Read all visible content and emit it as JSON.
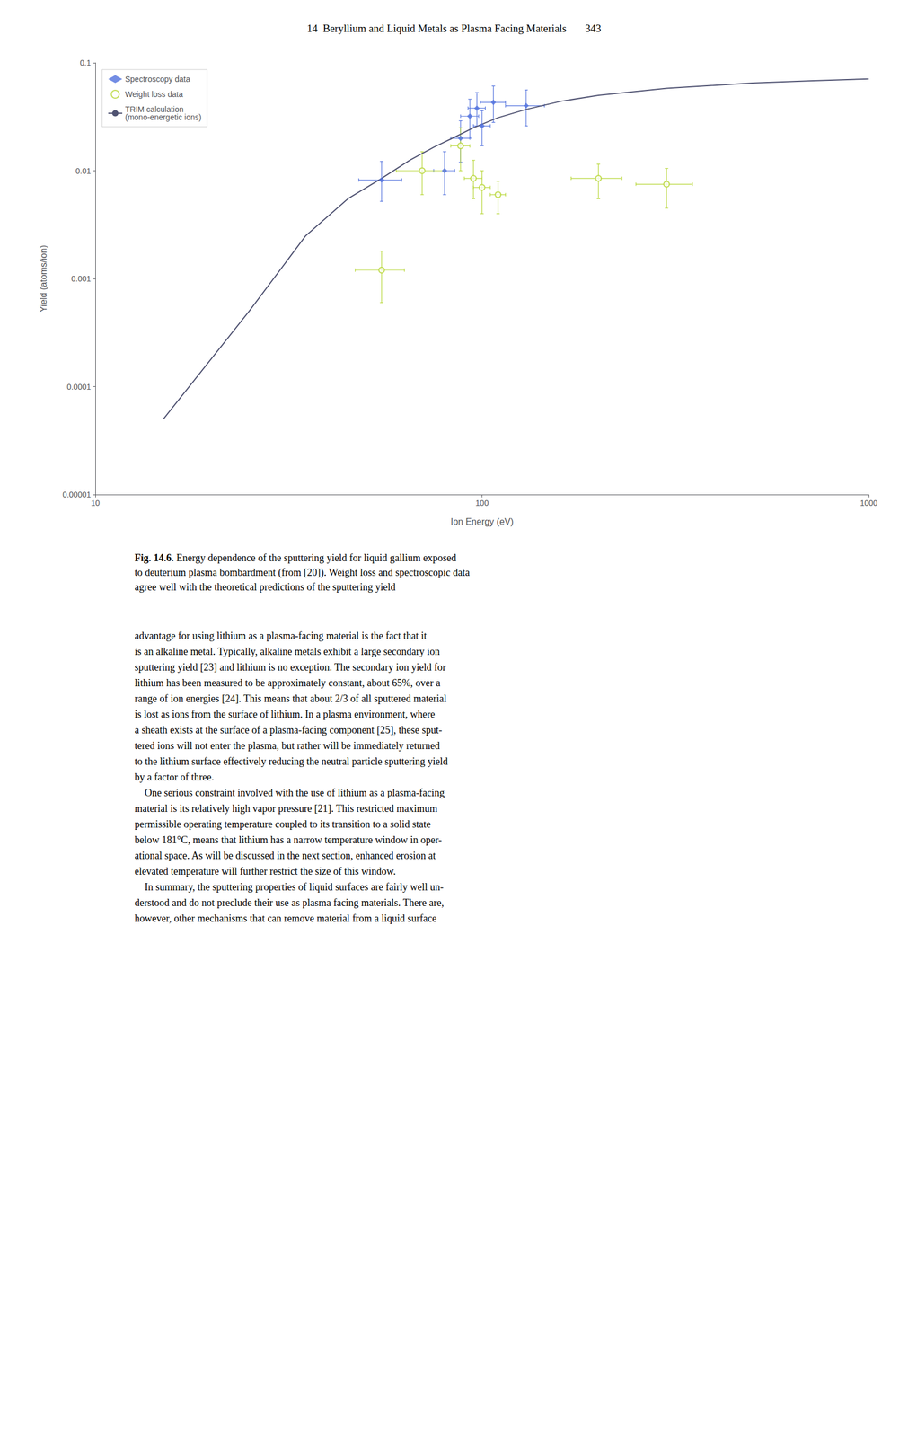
{
  "chart_data": {
    "type": "scatter",
    "page_header": "14  Beryllium and Liquid Metals as Plasma Facing Materials       343",
    "caption_bold": "Fig. 14.6.",
    "caption": " Energy dependence of the sputtering yield for liquid gallium exposed\nto deuterium plasma bombardment (from [20]). Weight loss and spectroscopic data\nagree well with the theoretical predictions of the sputtering yield",
    "body_paragraphs": [
      [
        "advantage for using lithium as a plasma-facing material is the fact that it",
        "is an alkaline metal. Typically, alkaline metals exhibit a large secondary ion",
        "sputtering yield [23] and lithium is no exception. The secondary ion yield for",
        "lithium has been measured to be approximately constant, about 65%, over a",
        "range of ion energies [24]. This means that about 2/3 of all sputtered material",
        "is lost as ions from the surface of lithium. In a plasma environment, where",
        "a sheath exists at the surface of a plasma-facing component [25], these sput-",
        "tered ions will not enter the plasma, but rather will be immediately returned",
        "to the lithium surface effectively reducing the neutral particle sputtering yield",
        "by a factor of three."
      ],
      [
        "    One serious constraint involved with the use of lithium as a plasma-facing",
        "material is its relatively high vapor pressure [21]. This restricted maximum",
        "permissible operating temperature coupled to its transition to a solid state",
        "below 181°C, means that lithium has a narrow temperature window in oper-",
        "ational space. As will be discussed in the next section, enhanced erosion at",
        "elevated temperature will further restrict the size of this window."
      ],
      [
        "    In summary, the sputtering properties of liquid surfaces are fairly well un-",
        "derstood and do not preclude their use as plasma facing materials. There are,",
        "however, other mechanisms that can remove material from a liquid surface"
      ]
    ],
    "xlabel": "Ion Energy (eV)",
    "ylabel": "Yield (atoms/ion)",
    "log": true,
    "xlim": [
      10,
      1000
    ],
    "ylim": [
      1e-05,
      0.1
    ],
    "xticks": [
      10,
      100,
      1000
    ],
    "yticks": [
      1e-05,
      0.0001,
      0.001,
      0.01,
      0.1
    ],
    "grid": false,
    "legend": "upper left",
    "series": [
      {
        "name": "Spectroscopy data",
        "type": "scatter",
        "marker": "diamond",
        "x": [
          55,
          80,
          88,
          93,
          97,
          100,
          107,
          130
        ],
        "values": [
          0.0082,
          0.01,
          0.02,
          0.032,
          0.038,
          0.026,
          0.043,
          0.04
        ],
        "xerr_lo": [
          7,
          5,
          5,
          5,
          5,
          5,
          8,
          15
        ],
        "xerr_hi": [
          7,
          5,
          5,
          5,
          5,
          5,
          8,
          15
        ],
        "yerr_lo": [
          0.003,
          0.004,
          0.008,
          0.012,
          0.012,
          0.009,
          0.015,
          0.014
        ],
        "yerr_hi": [
          0.004,
          0.005,
          0.009,
          0.014,
          0.015,
          0.01,
          0.018,
          0.016
        ]
      },
      {
        "name": "Weight loss data",
        "type": "scatter",
        "marker": "open_circle",
        "x": [
          55,
          70,
          88,
          95,
          100,
          110,
          200,
          300
        ],
        "values": [
          0.0012,
          0.01,
          0.017,
          0.0085,
          0.007,
          0.006,
          0.0085,
          0.0075
        ],
        "xerr_lo": [
          8,
          10,
          5,
          5,
          5,
          5,
          30,
          50
        ],
        "xerr_hi": [
          8,
          10,
          5,
          5,
          5,
          5,
          30,
          50
        ],
        "yerr_lo": [
          0.0006,
          0.004,
          0.007,
          0.003,
          0.003,
          0.002,
          0.003,
          0.003
        ],
        "yerr_hi": [
          0.0006,
          0.005,
          0.008,
          0.004,
          0.003,
          0.002,
          0.003,
          0.003
        ]
      },
      {
        "name": "TRIM calculation\n(mono-energetic ions)",
        "type": "line",
        "x": [
          15,
          25,
          35,
          45,
          55,
          65,
          75,
          85,
          95,
          110,
          130,
          160,
          200,
          300,
          500,
          700,
          1000
        ],
        "values": [
          5e-05,
          0.0005,
          0.0025,
          0.0055,
          0.0085,
          0.0125,
          0.0165,
          0.0205,
          0.025,
          0.031,
          0.037,
          0.044,
          0.05,
          0.058,
          0.065,
          0.068,
          0.071
        ]
      }
    ]
  }
}
